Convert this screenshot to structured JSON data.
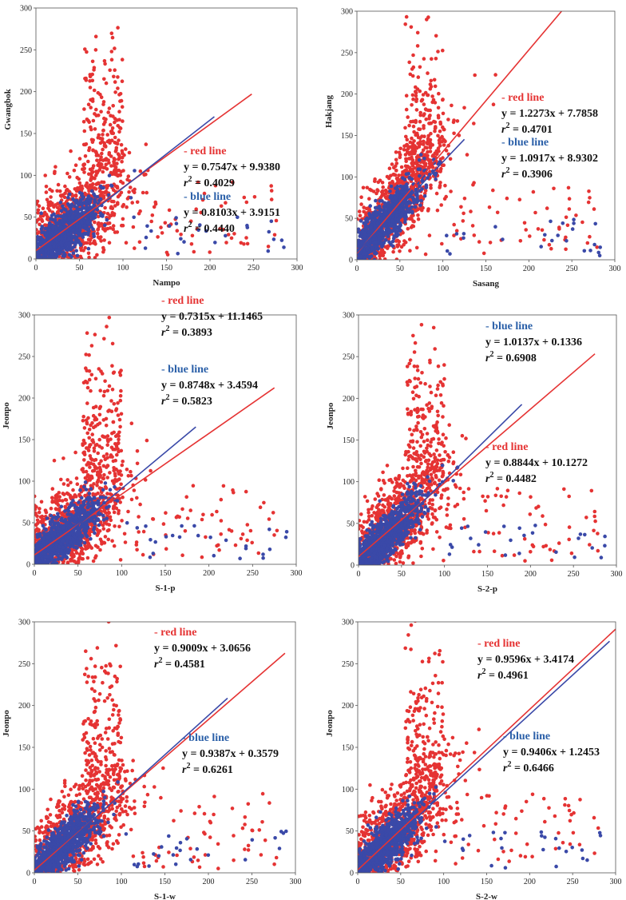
{
  "colors": {
    "red": "#e53333",
    "blue": "#3a49a8",
    "redText": "#e53333",
    "blueText": "#2a5fa8"
  },
  "chart_data": [
    {
      "type": "scatter",
      "xlabel": "Nampo",
      "ylabel": "Gwangbok",
      "xlim": [
        0,
        300
      ],
      "ylim": [
        0,
        300
      ],
      "xticks": [
        "0",
        "50",
        "100",
        "150",
        "200",
        "250",
        "300"
      ],
      "yticks": [
        "0",
        "50",
        "100",
        "150",
        "200",
        "250",
        "300"
      ],
      "series": [
        {
          "name": "red line",
          "equation": "y = 0.7547x + 9.9380",
          "r2": "0.4029",
          "slope": 0.7547,
          "intercept": 9.938,
          "x_range": [
            0,
            248
          ]
        },
        {
          "name": "blue line",
          "equation": "y = 0.8103x + 3.9151",
          "r2": "0.4440",
          "slope": 0.8103,
          "intercept": 3.9151,
          "x_range": [
            0,
            205
          ]
        }
      ]
    },
    {
      "type": "scatter",
      "xlabel": "Sasang",
      "ylabel": "Hakjang",
      "xlim": [
        0,
        300
      ],
      "ylim": [
        0,
        300
      ],
      "xticks": [
        "0",
        "50",
        "100",
        "150",
        "200",
        "250",
        "300"
      ],
      "yticks": [
        "0",
        "50",
        "100",
        "150",
        "200",
        "250",
        "300"
      ],
      "series": [
        {
          "name": "red line",
          "equation": "y = 1.2273x + 7.7858",
          "r2": "0.4701",
          "slope": 1.2273,
          "intercept": 7.7858,
          "x_range": [
            0,
            238
          ]
        },
        {
          "name": "blue line",
          "equation": "y = 1.0917x + 8.9302",
          "r2": "0.3906",
          "slope": 1.0917,
          "intercept": 8.9302,
          "x_range": [
            0,
            125
          ]
        }
      ]
    },
    {
      "type": "scatter",
      "xlabel": "S-1-p",
      "ylabel": "Jeonpo",
      "xlim": [
        0,
        300
      ],
      "ylim": [
        0,
        300
      ],
      "xticks": [
        "0",
        "50",
        "100",
        "150",
        "200",
        "250",
        "300"
      ],
      "yticks": [
        "0",
        "50",
        "100",
        "150",
        "200",
        "250",
        "300"
      ],
      "series": [
        {
          "name": "red line",
          "equation": "y = 0.7315x + 11.1465",
          "r2": "0.3893",
          "slope": 0.7315,
          "intercept": 11.1465,
          "x_range": [
            0,
            275
          ]
        },
        {
          "name": "blue line",
          "equation": "y = 0.8748x + 3.4594",
          "r2": "0.5823",
          "slope": 0.8748,
          "intercept": 3.4594,
          "x_range": [
            0,
            185
          ]
        }
      ]
    },
    {
      "type": "scatter",
      "xlabel": "S-2-p",
      "ylabel": "Jeonpo",
      "xlim": [
        0,
        300
      ],
      "ylim": [
        0,
        300
      ],
      "xticks": [
        "0",
        "50",
        "100",
        "150",
        "200",
        "250",
        "300"
      ],
      "yticks": [
        "0",
        "50",
        "100",
        "150",
        "200",
        "250",
        "300"
      ],
      "series": [
        {
          "name": "red line",
          "equation": "y = 0.8844x + 10.1272",
          "r2": "0.4482",
          "slope": 0.8844,
          "intercept": 10.1272,
          "x_range": [
            0,
            275
          ]
        },
        {
          "name": "blue line",
          "equation": "y = 1.0137x + 0.1336",
          "r2": "0.6908",
          "slope": 1.0137,
          "intercept": 0.1336,
          "x_range": [
            0,
            190
          ]
        }
      ]
    },
    {
      "type": "scatter",
      "xlabel": "S-1-w",
      "ylabel": "Jeonpo",
      "xlim": [
        0,
        300
      ],
      "ylim": [
        0,
        300
      ],
      "xticks": [
        "0",
        "50",
        "100",
        "150",
        "200",
        "250",
        "300"
      ],
      "yticks": [
        "0",
        "50",
        "100",
        "150",
        "200",
        "250",
        "300"
      ],
      "series": [
        {
          "name": "red line",
          "equation": "y = 0.9009x + 3.0656",
          "r2": "0.4581",
          "slope": 0.9009,
          "intercept": 3.0656,
          "x_range": [
            0,
            288
          ]
        },
        {
          "name": "blue line",
          "equation": "y = 0.9387x + 0.3579",
          "r2": "0.6261",
          "slope": 0.9387,
          "intercept": 0.3579,
          "x_range": [
            0,
            222
          ]
        }
      ]
    },
    {
      "type": "scatter",
      "xlabel": "S-2-w",
      "ylabel": "Jeonpo",
      "xlim": [
        0,
        300
      ],
      "ylim": [
        0,
        300
      ],
      "xticks": [
        "0",
        "50",
        "100",
        "150",
        "200",
        "250",
        "300"
      ],
      "yticks": [
        "0",
        "50",
        "100",
        "150",
        "200",
        "250",
        "300"
      ],
      "series": [
        {
          "name": "red line",
          "equation": "y = 0.9596x + 3.4174",
          "r2": "0.4961",
          "slope": 0.9596,
          "intercept": 3.4174,
          "x_range": [
            0,
            300
          ]
        },
        {
          "name": "blue line",
          "equation": "y = 0.9406x + 1.2453",
          "r2": "0.6466",
          "slope": 0.9406,
          "intercept": 1.2453,
          "x_range": [
            0,
            293
          ]
        }
      ]
    }
  ]
}
